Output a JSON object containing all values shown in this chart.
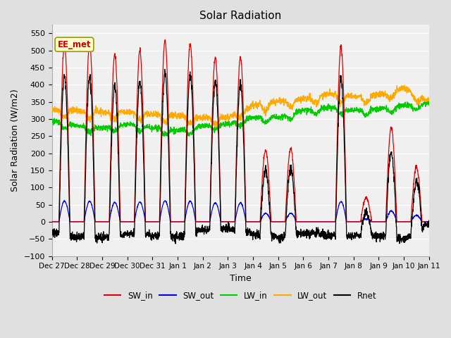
{
  "title": "Solar Radiation",
  "xlabel": "Time",
  "ylabel": "Solar Radiation (W/m2)",
  "ylim": [
    -100,
    575
  ],
  "yticks": [
    -100,
    -50,
    0,
    50,
    100,
    150,
    200,
    250,
    300,
    350,
    400,
    450,
    500,
    550
  ],
  "x_labels": [
    "Dec 27",
    "Dec 28",
    "Dec 29",
    "Dec 30",
    "Dec 31",
    "Jan 1",
    "Jan 2",
    "Jan 3",
    "Jan 4",
    "Jan 5",
    "Jan 6",
    "Jan 7",
    "Jan 8",
    "Jan 9",
    "Jan 10",
    "Jan 11"
  ],
  "annotation": "EE_met",
  "fig_facecolor": "#e0e0e0",
  "plot_bg_color": "#f0f0f0",
  "legend_entries": [
    "SW_in",
    "SW_out",
    "LW_in",
    "LW_out",
    "Rnet"
  ],
  "legend_colors": [
    "#dd0000",
    "#0000ee",
    "#00cc00",
    "#ffaa00",
    "#000000"
  ],
  "SW_in_color": "#dd0000",
  "SW_out_color": "#0000ee",
  "LW_in_color": "#00cc00",
  "LW_out_color": "#ffaa00",
  "Rnet_color": "#000000",
  "n_days": 15,
  "ppd": 144,
  "day_peaks": [
    520,
    520,
    490,
    500,
    530,
    520,
    480,
    480,
    210,
    215,
    0,
    510,
    70,
    275,
    160
  ],
  "lw_in_nodes": [
    0,
    1,
    2,
    3,
    4,
    5,
    6,
    7,
    8,
    9,
    10,
    11,
    12,
    13,
    14,
    15
  ],
  "lw_in_vals": [
    295,
    280,
    275,
    285,
    275,
    265,
    280,
    285,
    305,
    305,
    325,
    335,
    325,
    330,
    340,
    345
  ],
  "lw_out_nodes": [
    0,
    1,
    2,
    3,
    4,
    5,
    6,
    7,
    8,
    9,
    10,
    11,
    12,
    13,
    14,
    15
  ],
  "lw_out_vals": [
    325,
    325,
    320,
    320,
    315,
    310,
    305,
    305,
    340,
    352,
    358,
    375,
    365,
    370,
    392,
    352
  ],
  "night_rnet": -50,
  "sw_out_ratio": 0.115
}
